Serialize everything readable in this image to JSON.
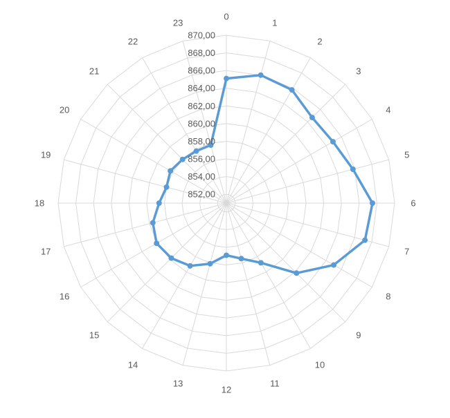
{
  "chart_data": {
    "type": "radar",
    "title": "",
    "categories": [
      "0",
      "1",
      "2",
      "3",
      "4",
      "5",
      "6",
      "7",
      "8",
      "9",
      "10",
      "11",
      "12",
      "13",
      "14",
      "15",
      "16",
      "17",
      "18",
      "19",
      "20",
      "21",
      "22",
      "23"
    ],
    "series": [
      {
        "values": [
          865.1,
          866.0,
          865.8,
          864.7,
          864.9,
          865.8,
          867.5,
          867.2,
          865.0,
          862.2,
          858.8,
          857.5,
          856.9,
          858.1,
          859.2,
          859.8,
          860.1,
          859.6,
          858.6,
          858.0,
          858.3,
          858.0,
          857.8,
          857.8
        ]
      }
    ],
    "rlim": [
      851.0,
      870.0
    ],
    "ticks": [
      "852,00",
      "854,00",
      "856,00",
      "858,00",
      "860,00",
      "862,00",
      "864,00",
      "866,00",
      "868,00",
      "870,00"
    ],
    "tick_values": [
      852,
      854,
      856,
      858,
      860,
      862,
      864,
      866,
      868,
      870
    ],
    "grid": true,
    "legend": "none",
    "colors": {
      "series": "#5B9BD5",
      "grid": "#D9D9D9",
      "text": "#595959"
    }
  }
}
